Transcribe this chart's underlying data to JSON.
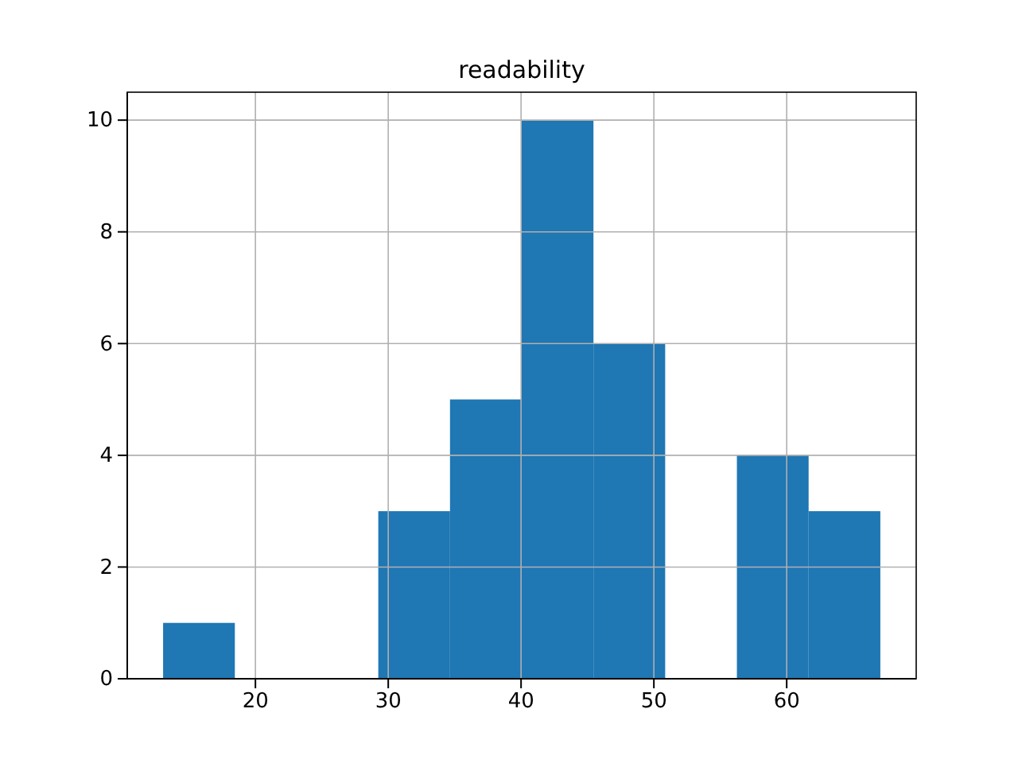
{
  "chart_data": {
    "type": "histogram",
    "title": "readability",
    "bins": [
      13.05,
      18.45,
      23.85,
      29.25,
      34.65,
      40.05,
      45.45,
      50.85,
      56.25,
      61.65,
      67.05
    ],
    "values": [
      1,
      0,
      0,
      3,
      5,
      10,
      6,
      0,
      4,
      3
    ],
    "color": "#1f77b4",
    "xlim": [
      10.35,
      69.75
    ],
    "xticks": [
      20,
      30,
      40,
      50,
      60
    ],
    "ylim": [
      0,
      10.5
    ],
    "yticks": [
      0,
      2,
      4,
      6,
      8,
      10
    ],
    "grid": true
  }
}
